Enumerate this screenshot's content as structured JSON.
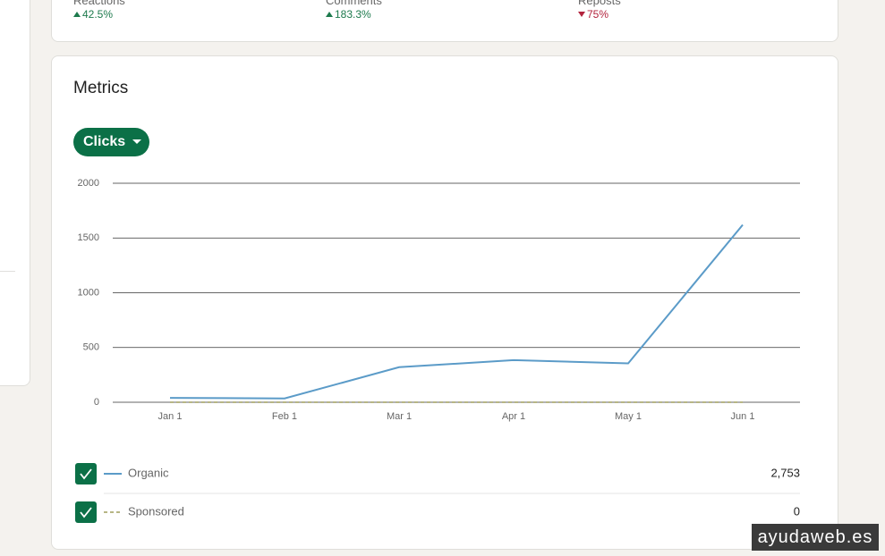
{
  "top_stats": [
    {
      "label": "Reactions",
      "change": "42.5%",
      "direction": "up"
    },
    {
      "label": "Comments",
      "change": "183.3%",
      "direction": "up"
    },
    {
      "label": "Reposts",
      "change": "75%",
      "direction": "down"
    }
  ],
  "metrics": {
    "title": "Metrics",
    "dropdown": "Clicks"
  },
  "chart_data": {
    "type": "line",
    "categories": [
      "Jan 1",
      "Feb 1",
      "Mar 1",
      "Apr 1",
      "May 1",
      "Jun 1"
    ],
    "series": [
      {
        "name": "Organic",
        "color": "#5b9bc8",
        "dash": false,
        "total": "2,753",
        "values": [
          40,
          35,
          320,
          385,
          355,
          1620
        ]
      },
      {
        "name": "Sponsored",
        "color": "#8c8a3c",
        "dash": true,
        "total": "0",
        "values": [
          0,
          0,
          0,
          0,
          0,
          0
        ]
      }
    ],
    "ylim": [
      0,
      2000
    ],
    "yticks": [
      0,
      500,
      1000,
      1500,
      2000
    ],
    "grid": true
  },
  "watermark": "ayudaweb.es"
}
